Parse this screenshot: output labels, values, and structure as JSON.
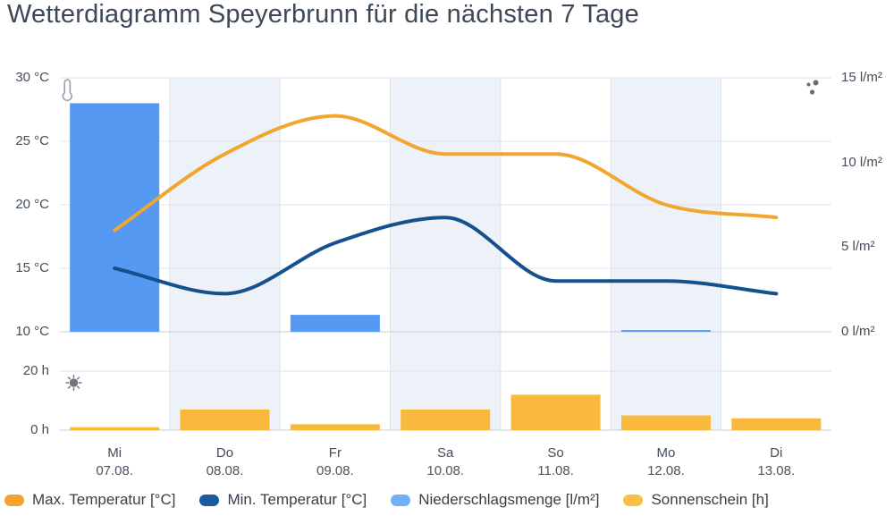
{
  "title": "Wetterdiagramm Speyerbrunn für die nächsten 7 Tage",
  "icons": [
    "thermometer-icon",
    "raindrops-icon",
    "sun-icon"
  ],
  "colors": {
    "background": "#ffffff",
    "band": "#edf2f9",
    "gridline": "#dfe3e8",
    "axis_line": "#c9cfd6",
    "tick_text": "#434e5b",
    "title_text": "#3d4856",
    "icon_gray": "#70767e"
  },
  "chart_data": {
    "type": "combo",
    "title": "Wetterdiagramm Speyerbrunn für die nächsten 7 Tage",
    "days": [
      {
        "day": "Mi",
        "date": "07.08."
      },
      {
        "day": "Do",
        "date": "08.08."
      },
      {
        "day": "Fr",
        "date": "09.08."
      },
      {
        "day": "Sa",
        "date": "10.08."
      },
      {
        "day": "So",
        "date": "11.08."
      },
      {
        "day": "Mo",
        "date": "12.08."
      },
      {
        "day": "Di",
        "date": "13.08."
      }
    ],
    "highlighted_columns": [
      1,
      3,
      5
    ],
    "series": [
      {
        "name": "Max.  Temperatur [°C]",
        "type": "line",
        "axis": "temperature",
        "unit": "°C",
        "color": "#f0a62f",
        "legend_color": "#f2a52e",
        "values": [
          18,
          24,
          27,
          24,
          24,
          20,
          19
        ]
      },
      {
        "name": "Min.  Temperatur [°C]",
        "type": "line",
        "axis": "temperature",
        "unit": "°C",
        "color": "#15508f",
        "legend_color": "#1c58a4",
        "values": [
          15,
          13,
          17,
          19,
          14,
          14,
          13
        ]
      },
      {
        "name": "Niederschlagsmenge [l/m²]",
        "type": "bar",
        "axis": "precipitation",
        "unit": "l/m²",
        "color": "#5599f2",
        "legend_color": "#6fb0f7",
        "values": [
          13.5,
          0,
          1,
          0,
          0,
          0.1,
          0
        ]
      },
      {
        "name": "Sonnenschein [h]",
        "type": "bar",
        "axis": "sunshine",
        "unit": "h",
        "color": "#f8b93c",
        "legend_color": "#f9c045",
        "values": [
          1,
          7,
          2,
          7,
          12,
          5,
          4
        ]
      }
    ],
    "axes": {
      "temperature": {
        "side": "left",
        "min": 10,
        "max": 30,
        "ticks": [
          {
            "value": 30,
            "label": "30 °C"
          },
          {
            "value": 25,
            "label": "25 °C"
          },
          {
            "value": 20,
            "label": "20 °C"
          },
          {
            "value": 15,
            "label": "15 °C"
          },
          {
            "value": 10,
            "label": "10 °C"
          }
        ]
      },
      "precipitation": {
        "side": "right",
        "min": 0,
        "max": 15,
        "ticks": [
          {
            "value": 15,
            "label": "15 l/m²"
          },
          {
            "value": 10,
            "label": "10 l/m²"
          },
          {
            "value": 5,
            "label": "5 l/m²"
          },
          {
            "value": 0,
            "label": "0 l/m²"
          }
        ]
      },
      "sunshine": {
        "side": "left",
        "min": 0,
        "max": 20,
        "ticks": [
          {
            "value": 20,
            "label": "20 h"
          },
          {
            "value": 0,
            "label": "0 h"
          }
        ]
      }
    },
    "legend_position": "bottom"
  }
}
